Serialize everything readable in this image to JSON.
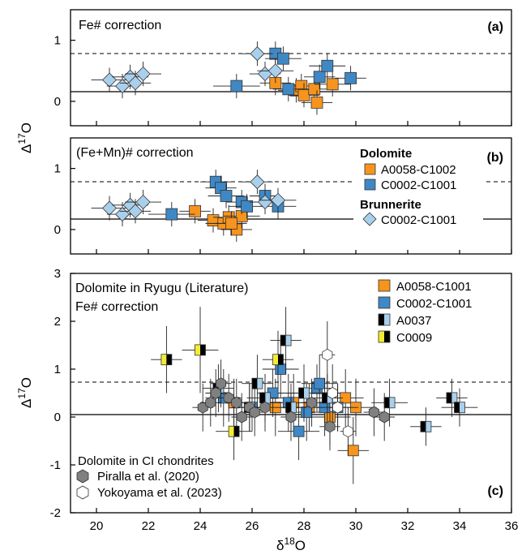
{
  "figure": {
    "y_axis_label": "Δ17O",
    "x_axis_label": "δ18O",
    "colors": {
      "orange": "#f7941d",
      "blue": "#3f88c5",
      "light_blue": "#a8d0ec",
      "yellow": "#f4ec32",
      "gray": "#808080",
      "black": "#000000"
    }
  },
  "chart_data": [
    {
      "type": "scatter",
      "panel_letter": "(a)",
      "title": "Fe# correction",
      "xlim": [
        19,
        36
      ],
      "ylim": [
        -0.4,
        1.5
      ],
      "yticks": [
        0,
        1
      ],
      "reference_lines": [
        {
          "y": 0,
          "style": "solid"
        },
        {
          "y": 0.7,
          "style": "dashed"
        }
      ],
      "series": [
        {
          "key": "A0058-C1002",
          "marker": "square",
          "color": "#f7941d",
          "points": [
            [
              26.9,
              0.3,
              0.6,
              0.2
            ],
            [
              27.7,
              0.18,
              0.7,
              0.2
            ],
            [
              27.9,
              0.25,
              0.7,
              0.2
            ],
            [
              28.0,
              0.1,
              0.6,
              0.2
            ],
            [
              28.4,
              0.2,
              0.7,
              0.2
            ],
            [
              28.5,
              -0.02,
              0.6,
              0.2
            ],
            [
              29.1,
              0.28,
              0.7,
              0.2
            ]
          ]
        },
        {
          "key": "C0002-C1001 Dolomite",
          "marker": "square",
          "color": "#3f88c5",
          "points": [
            [
              25.4,
              0.25,
              0.9,
              0.2
            ],
            [
              26.9,
              0.78,
              0.6,
              0.2
            ],
            [
              27.2,
              0.7,
              0.7,
              0.2
            ],
            [
              27.4,
              0.2,
              0.6,
              0.2
            ],
            [
              28.6,
              0.4,
              0.6,
              0.2
            ],
            [
              28.9,
              0.58,
              0.7,
              0.2
            ],
            [
              29.8,
              0.38,
              0.6,
              0.2
            ]
          ]
        },
        {
          "key": "C0002-C1001 Brunnerite",
          "marker": "diamond",
          "color": "#a8d0ec",
          "points": [
            [
              20.5,
              0.35,
              0.7,
              0.2
            ],
            [
              21.0,
              0.25,
              0.6,
              0.2
            ],
            [
              21.3,
              0.4,
              0.7,
              0.2
            ],
            [
              21.5,
              0.3,
              0.6,
              0.2
            ],
            [
              21.8,
              0.45,
              0.7,
              0.2
            ],
            [
              26.2,
              0.78,
              0.6,
              0.2
            ],
            [
              26.5,
              0.45,
              0.6,
              0.2
            ],
            [
              26.9,
              0.5,
              0.7,
              0.2
            ]
          ]
        }
      ]
    },
    {
      "type": "scatter",
      "panel_letter": "(b)",
      "title": "(Fe+Mn)# correction",
      "xlim": [
        19,
        36
      ],
      "ylim": [
        -0.4,
        1.5
      ],
      "yticks": [
        0,
        1
      ],
      "reference_lines": [
        {
          "y": 0,
          "style": "solid"
        },
        {
          "y": 0.7,
          "style": "dashed"
        }
      ],
      "legend": {
        "dolomite_heading": "Dolomite",
        "dolomite_items": [
          "A0058-C1002",
          "C0002-C1001"
        ],
        "brunnerite_heading": "Brunnerite",
        "brunnerite_items": [
          "C0002-C1001"
        ]
      },
      "series": [
        {
          "key": "A0058-C1002",
          "marker": "square",
          "color": "#f7941d",
          "points": [
            [
              23.8,
              0.3,
              0.6,
              0.2
            ],
            [
              24.5,
              0.15,
              0.6,
              0.2
            ],
            [
              24.9,
              0.1,
              0.7,
              0.2
            ],
            [
              25.1,
              0.2,
              0.6,
              0.2
            ],
            [
              25.4,
              0.0,
              0.6,
              0.2
            ],
            [
              25.6,
              0.22,
              0.7,
              0.2
            ],
            [
              25.2,
              0.1,
              0.6,
              0.2
            ]
          ]
        },
        {
          "key": "C0002-C1001 Dolomite",
          "marker": "square",
          "color": "#3f88c5",
          "points": [
            [
              22.9,
              0.25,
              0.9,
              0.2
            ],
            [
              24.6,
              0.78,
              0.6,
              0.2
            ],
            [
              24.8,
              0.68,
              0.6,
              0.2
            ],
            [
              25.0,
              0.55,
              0.7,
              0.2
            ],
            [
              25.6,
              0.45,
              0.6,
              0.2
            ],
            [
              25.8,
              0.38,
              0.7,
              0.2
            ],
            [
              26.5,
              0.55,
              0.6,
              0.2
            ],
            [
              27.0,
              0.38,
              0.7,
              0.2
            ]
          ]
        },
        {
          "key": "C0002-C1001 Brunnerite",
          "marker": "diamond",
          "color": "#a8d0ec",
          "points": [
            [
              20.5,
              0.35,
              0.7,
              0.2
            ],
            [
              21.0,
              0.25,
              0.6,
              0.2
            ],
            [
              21.3,
              0.4,
              0.7,
              0.2
            ],
            [
              21.5,
              0.3,
              0.6,
              0.2
            ],
            [
              21.8,
              0.45,
              0.7,
              0.2
            ],
            [
              26.2,
              0.78,
              0.6,
              0.2
            ],
            [
              26.5,
              0.45,
              0.6,
              0.2
            ],
            [
              27.0,
              0.48,
              0.7,
              0.2
            ]
          ]
        }
      ]
    },
    {
      "type": "scatter",
      "panel_letter": "(c)",
      "title": "Dolomite in Ryugu (Literature)",
      "subtitle": "Fe# correction",
      "xlim": [
        19,
        36
      ],
      "ylim": [
        -2,
        3
      ],
      "yticks": [
        -2,
        -1,
        0,
        1,
        2,
        3
      ],
      "xticks": [
        20,
        22,
        24,
        26,
        28,
        30,
        32,
        34,
        36
      ],
      "reference_lines": [
        {
          "y": 0,
          "style": "solid"
        },
        {
          "y": 0.7,
          "style": "dashed"
        }
      ],
      "legend": {
        "ryugu_items": [
          "A0058-C1001",
          "C0002-C1001",
          "A0037",
          "C0009"
        ],
        "ci_heading": "Dolomite in CI chondrites",
        "ci_items": [
          "Piralla et al. (2020)",
          "Yokoyama et al. (2023)"
        ]
      },
      "series": [
        {
          "key": "A0058-C1001",
          "marker": "square",
          "color": "#f7941d",
          "points": [
            [
              25.3,
              0.3,
              0.6,
              0.5
            ],
            [
              26.9,
              0.2,
              0.7,
              0.6
            ],
            [
              27.6,
              0.3,
              0.6,
              0.6
            ],
            [
              28.2,
              0.2,
              0.7,
              0.5
            ],
            [
              29.0,
              0.0,
              0.8,
              0.6
            ],
            [
              29.6,
              0.4,
              0.7,
              0.6
            ],
            [
              30.0,
              0.2,
              0.8,
              0.6
            ],
            [
              29.9,
              -0.7,
              0.6,
              0.7
            ]
          ]
        },
        {
          "key": "C0002-C1001",
          "marker": "square",
          "color": "#3f88c5",
          "points": [
            [
              24.9,
              0.4,
              0.7,
              0.6
            ],
            [
              26.0,
              0.2,
              0.6,
              0.5
            ],
            [
              27.4,
              0.3,
              0.7,
              0.6
            ],
            [
              27.8,
              -0.3,
              0.8,
              0.6
            ],
            [
              28.1,
              0.1,
              0.7,
              0.6
            ],
            [
              28.5,
              0.6,
              0.6,
              0.5
            ],
            [
              28.6,
              0.7,
              0.7,
              0.6
            ],
            [
              28.8,
              0.2,
              0.6,
              0.6
            ],
            [
              29.3,
              0.2,
              0.8,
              0.5
            ],
            [
              27.1,
              1.0,
              0.7,
              0.6
            ],
            [
              26.8,
              0.5,
              0.6,
              0.5
            ]
          ]
        },
        {
          "key": "A0037",
          "marker": "split-square",
          "color": "#a8d0ec",
          "points": [
            [
              24.7,
              0.6,
              0.6,
              0.5
            ],
            [
              25.9,
              0.2,
              0.7,
              0.5
            ],
            [
              26.2,
              0.7,
              0.6,
              0.6
            ],
            [
              26.5,
              0.4,
              0.7,
              0.5
            ],
            [
              27.3,
              1.6,
              0.6,
              0.7
            ],
            [
              27.5,
              0.2,
              0.6,
              0.5
            ],
            [
              28.0,
              0.5,
              0.7,
              0.6
            ],
            [
              28.9,
              0.4,
              0.6,
              0.5
            ],
            [
              31.3,
              0.3,
              0.7,
              0.5
            ],
            [
              32.7,
              -0.2,
              0.6,
              0.4
            ],
            [
              33.7,
              0.4,
              0.6,
              0.4
            ],
            [
              34.0,
              0.2,
              0.7,
              0.4
            ]
          ]
        },
        {
          "key": "C0009",
          "marker": "split-square",
          "color": "#f4ec32",
          "points": [
            [
              22.7,
              1.2,
              0.6,
              0.7
            ],
            [
              24.0,
              1.4,
              0.7,
              0.9
            ],
            [
              25.3,
              -0.3,
              0.7,
              0.6
            ],
            [
              27.0,
              1.2,
              0.6,
              0.6
            ]
          ]
        },
        {
          "key": "Piralla et al. (2020)",
          "marker": "hexagon",
          "color": "#808080",
          "points": [
            [
              24.1,
              0.2,
              0.4,
              0.5
            ],
            [
              24.4,
              0.3,
              0.4,
              0.5
            ],
            [
              24.6,
              0.5,
              0.4,
              0.5
            ],
            [
              24.8,
              0.7,
              0.4,
              0.5
            ],
            [
              25.1,
              0.4,
              0.4,
              0.5
            ],
            [
              25.4,
              0.3,
              0.4,
              0.5
            ],
            [
              25.6,
              0.0,
              0.4,
              0.5
            ],
            [
              25.9,
              0.2,
              0.4,
              0.5
            ],
            [
              26.1,
              0.1,
              0.4,
              0.5
            ],
            [
              26.5,
              0.2,
              0.4,
              0.5
            ],
            [
              27.5,
              0.0,
              0.4,
              0.5
            ],
            [
              28.3,
              0.3,
              0.4,
              0.5
            ],
            [
              29.0,
              -0.2,
              0.4,
              0.5
            ],
            [
              30.7,
              0.1,
              0.4,
              0.5
            ],
            [
              31.1,
              0.0,
              0.4,
              0.5
            ]
          ]
        },
        {
          "key": "Yokoyama et al. (2023)",
          "marker": "hexagon",
          "color": "#ffffff",
          "points": [
            [
              28.9,
              1.3,
              0.3,
              0.7
            ],
            [
              29.1,
              0.5,
              0.3,
              0.6
            ],
            [
              29.3,
              0.2,
              0.3,
              0.5
            ],
            [
              29.7,
              -0.3,
              0.3,
              0.5
            ]
          ]
        }
      ]
    }
  ]
}
